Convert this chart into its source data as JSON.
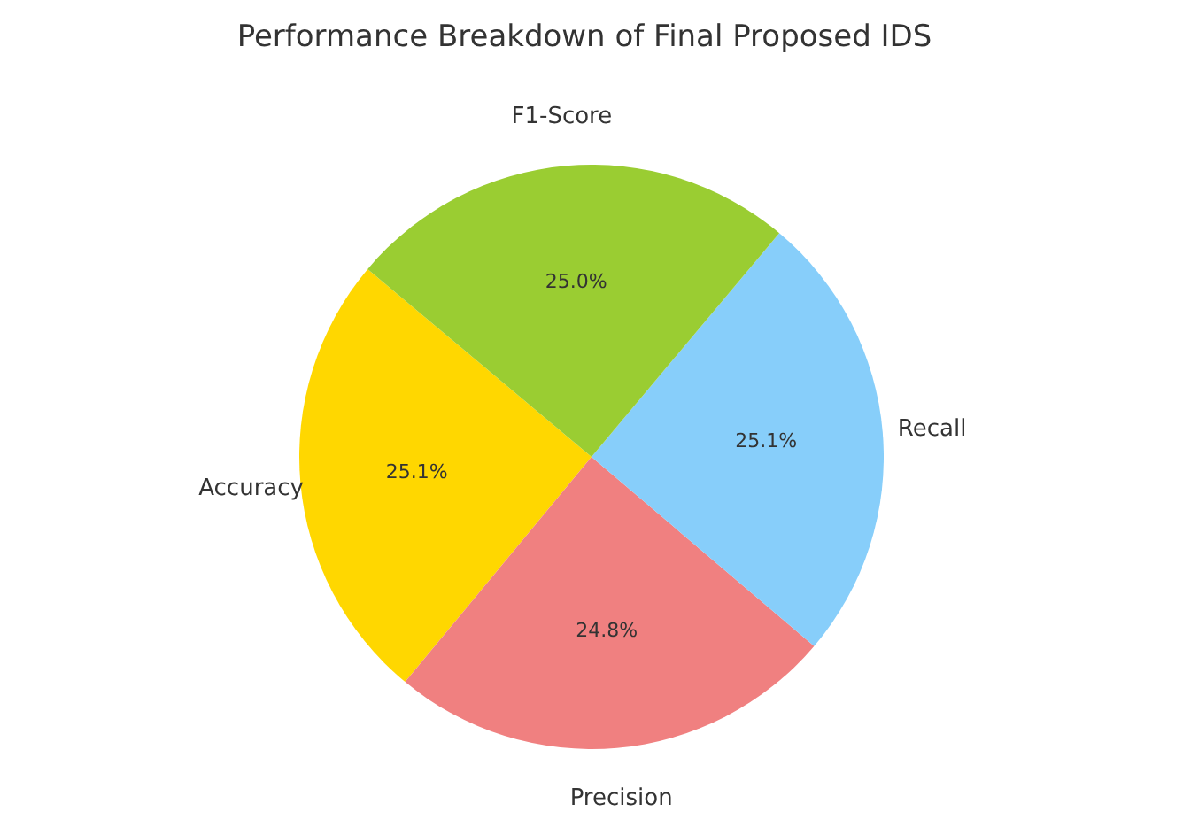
{
  "chart_data": {
    "type": "pie",
    "title": "Performance Breakdown of Final Proposed IDS",
    "categories": [
      "Accuracy",
      "Precision",
      "Recall",
      "F1-Score"
    ],
    "values": [
      25.1,
      24.8,
      25.1,
      25.0
    ],
    "colors": [
      "#ffd700",
      "#f08080",
      "#87cefa",
      "#9acd32"
    ],
    "value_labels": [
      "25.1%",
      "24.8%",
      "25.1%",
      "25.0%"
    ]
  }
}
